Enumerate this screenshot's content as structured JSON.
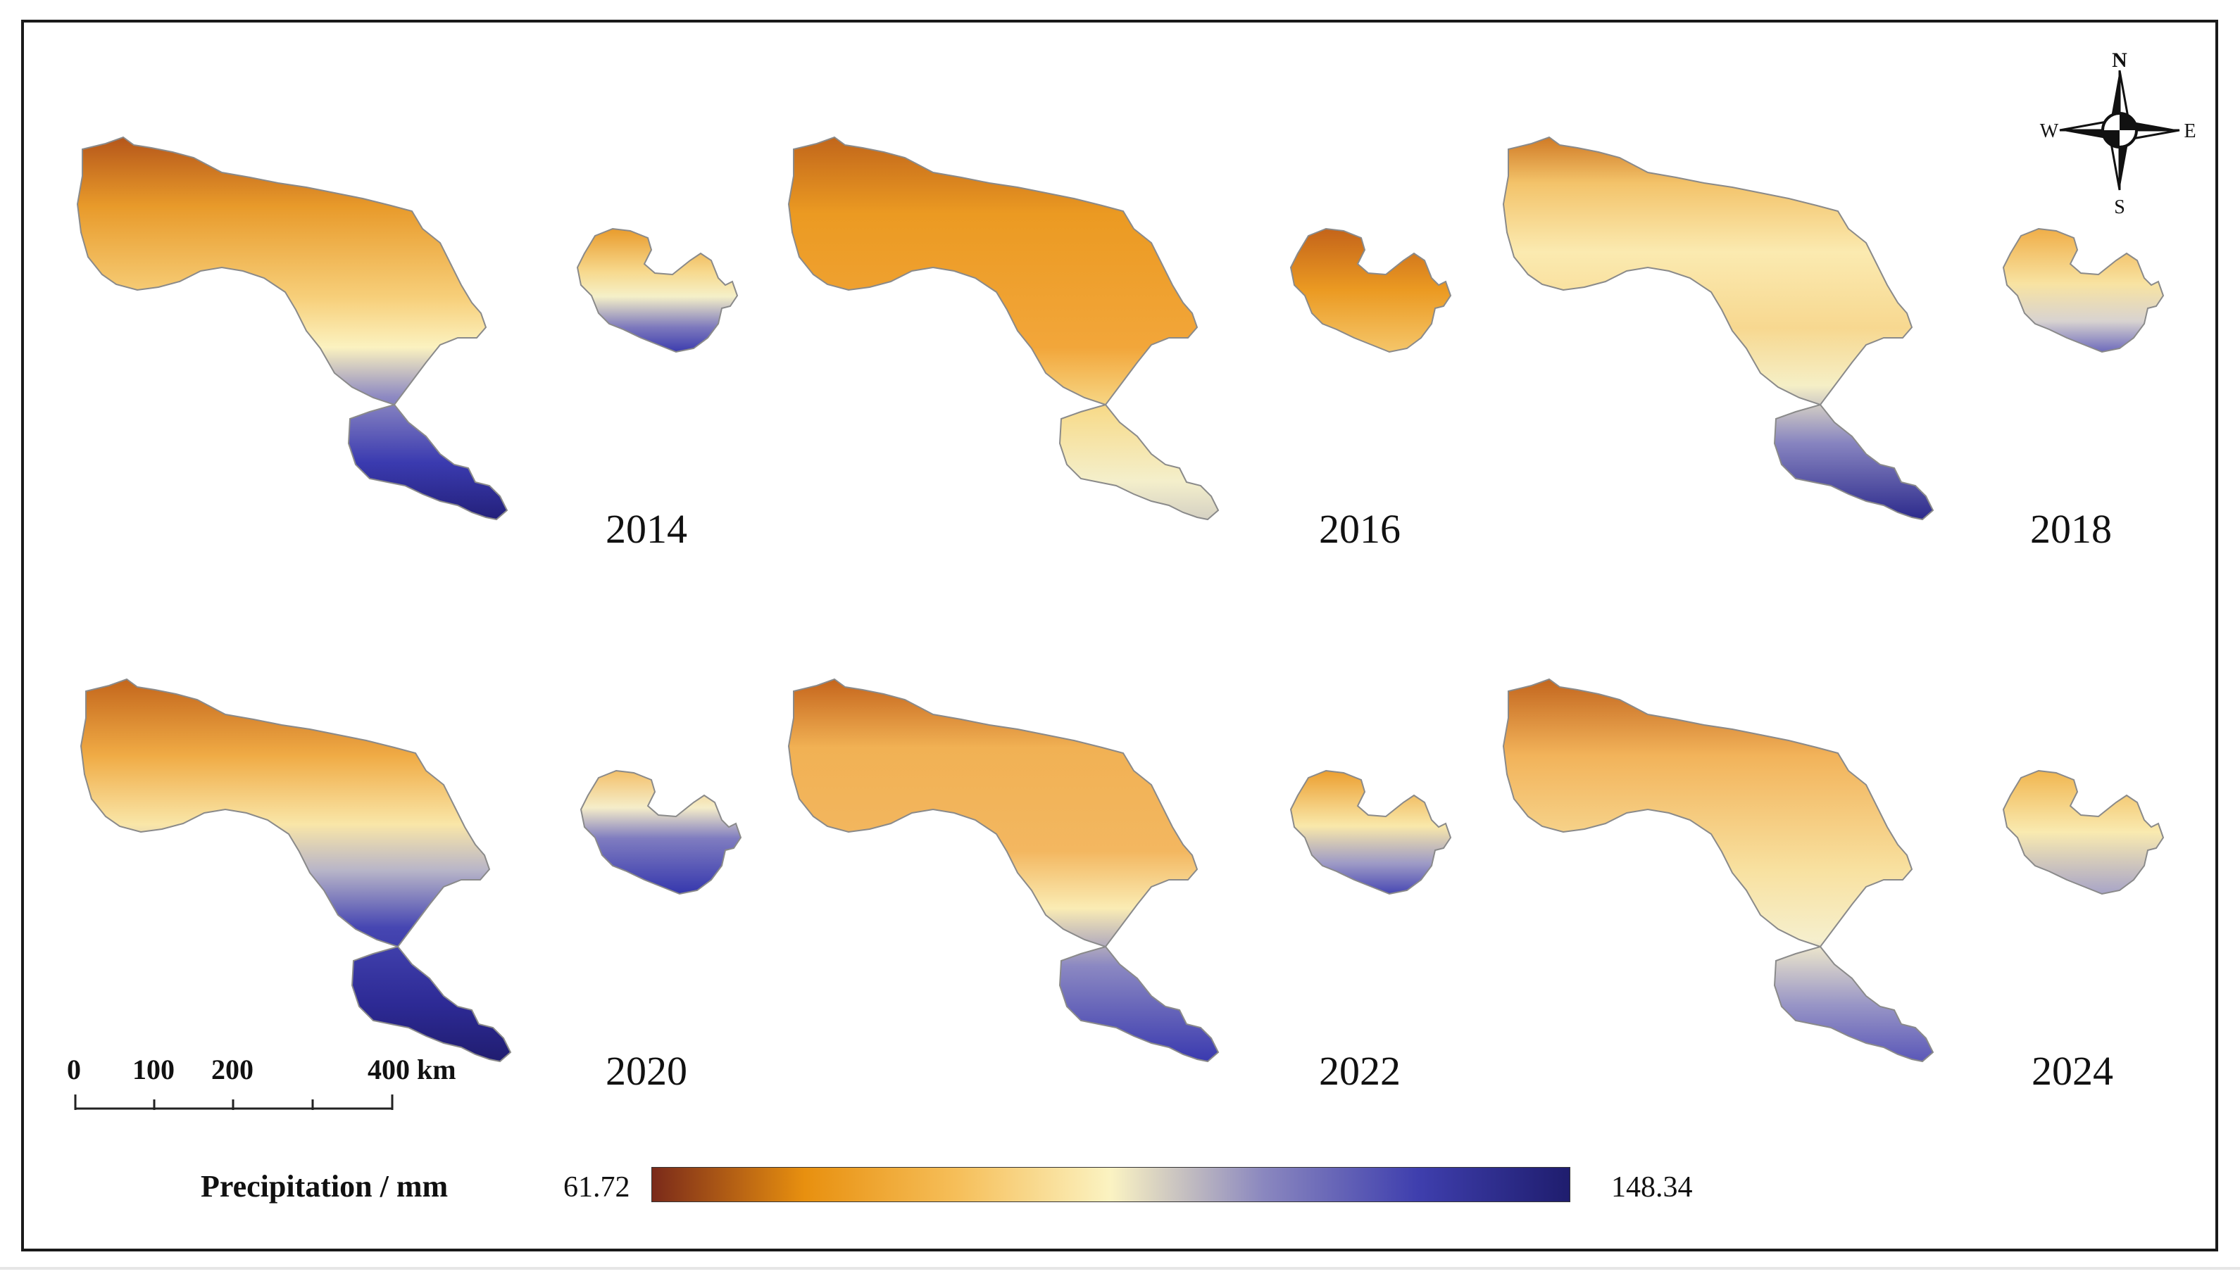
{
  "figure": {
    "panels": [
      {
        "year": "2014"
      },
      {
        "year": "2016"
      },
      {
        "year": "2018"
      },
      {
        "year": "2020"
      },
      {
        "year": "2022"
      },
      {
        "year": "2024"
      }
    ],
    "legend": {
      "title": "Precipitation / mm",
      "min": "61.72",
      "max": "148.34",
      "colors": [
        "#7a2a1a",
        "#e8900f",
        "#f6bf5a",
        "#fbf3c2",
        "#8a87bf",
        "#3f3fae",
        "#1f1d6e"
      ]
    },
    "scale_bar": {
      "labels": [
        "0",
        "100",
        "200",
        "400 km"
      ]
    },
    "compass": {
      "n": "N",
      "s": "S",
      "e": "E",
      "w": "W"
    }
  }
}
